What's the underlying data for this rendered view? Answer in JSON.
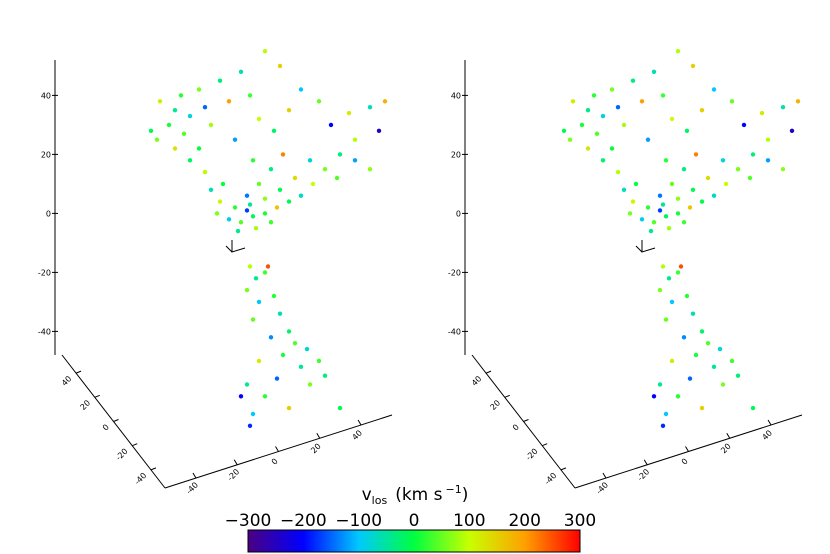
{
  "chart_data": {
    "type": "scatter3d",
    "panels": 2,
    "colormap": [
      "#4b0082",
      "#0000ff",
      "#00c8ff",
      "#00ff40",
      "#c8ff00",
      "#ffa000",
      "#ff0000"
    ],
    "zlim": [
      -48,
      52
    ],
    "zticks": [
      -40,
      -20,
      0,
      20,
      40
    ],
    "xlim": [
      -55,
      55
    ],
    "xticks": [
      -40,
      -20,
      0,
      20,
      40
    ],
    "ylim": [
      55,
      -55
    ],
    "yticks": [
      40,
      20,
      0,
      -20,
      -40
    ],
    "vlim": [
      -300,
      300
    ],
    "vticks": [
      {
        "value": -300,
        "label": "−300"
      },
      {
        "value": -200,
        "label": "−200"
      },
      {
        "value": -100,
        "label": "−100"
      },
      0,
      100,
      200,
      300
    ],
    "colorbar_label": {
      "symbol": "v",
      "subscript": "los",
      "unit": "(km s",
      "exponent": "−1",
      "close": ")"
    },
    "points": {
      "x": [
        -35,
        -30,
        -28,
        -25,
        -32,
        -22,
        -38,
        -27,
        -20,
        -18,
        -15,
        -12,
        -8,
        -5,
        -10,
        -2,
        3,
        8,
        12,
        18,
        22,
        28,
        35,
        40,
        30,
        25,
        20,
        15,
        10,
        5,
        0,
        -5,
        -10,
        -15,
        -12,
        -8,
        -4,
        0,
        4,
        -6,
        -2,
        -14,
        -18,
        -20,
        2,
        6,
        -4,
        12,
        16,
        24,
        30,
        35,
        -25,
        -30,
        -36,
        0,
        5,
        -3,
        -9,
        -6,
        2,
        8,
        -16,
        38,
        -22,
        -5,
        -3,
        0,
        -6,
        -2,
        3,
        5,
        -4,
        8,
        2,
        10,
        14,
        6,
        -2,
        12,
        18,
        4,
        -6,
        15,
        20,
        -8,
        0,
        -4,
        8,
        25,
        -5,
        1
      ],
      "z": [
        38,
        35,
        40,
        33,
        30,
        42,
        28,
        27,
        36,
        30,
        45,
        38,
        48,
        40,
        25,
        32,
        28,
        35,
        42,
        38,
        30,
        34,
        36,
        38,
        25,
        20,
        15,
        18,
        12,
        8,
        5,
        3,
        2,
        4,
        -2,
        -3,
        -1,
        0,
        2,
        6,
        10,
        10,
        8,
        14,
        15,
        20,
        18,
        6,
        10,
        12,
        18,
        15,
        18,
        22,
        25,
        55,
        50,
        -5,
        -6,
        1,
        -3,
        4,
        0,
        28,
        22,
        -18,
        -22,
        -20,
        -26,
        -30,
        -28,
        -34,
        -36,
        -40,
        -42,
        -44,
        -46,
        -48,
        -50,
        -52,
        -50,
        -56,
        -58,
        -58,
        -55,
        -62,
        -62,
        -68,
        -66,
        -66,
        -72,
        -18
      ],
      "v": [
        120,
        -40,
        20,
        -80,
        10,
        60,
        -10,
        40,
        -150,
        80,
        -30,
        200,
        -60,
        30,
        -120,
        100,
        -20,
        150,
        -100,
        50,
        -200,
        120,
        -60,
        180,
        90,
        -30,
        60,
        -80,
        140,
        -10,
        70,
        -50,
        20,
        110,
        -90,
        40,
        -20,
        10,
        160,
        -140,
        50,
        0,
        -60,
        90,
        -30,
        220,
        20,
        -70,
        100,
        40,
        -120,
        70,
        -20,
        130,
        60,
        90,
        150,
        80,
        -40,
        -170,
        30,
        -10,
        60,
        -250,
        0,
        90,
        -40,
        30,
        60,
        -100,
        20,
        -60,
        50,
        -20,
        -130,
        40,
        -80,
        10,
        120,
        -50,
        30,
        -150,
        -40,
        60,
        -30,
        -200,
        20,
        -100,
        150,
        -10,
        -180,
        250
      ]
    }
  }
}
